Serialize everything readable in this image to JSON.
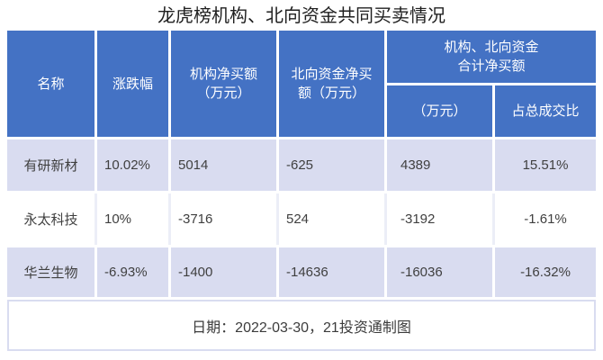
{
  "title": "龙虎榜机构、北向资金共同买卖情况",
  "colors": {
    "header_bg": "#4472C4",
    "header_text": "#FFFFFF",
    "banded_row_bg": "#D9DCF0",
    "plain_row_bg": "#FFFFFF",
    "body_text": "#404040",
    "footer_border": "#D9DCF0"
  },
  "chart_data": {
    "type": "table",
    "title": "龙虎榜机构、北向资金共同买卖情况",
    "headers": {
      "name": "名称",
      "change": "涨跌幅",
      "inst_net_buy": "机构净买额\n（万元）",
      "north_net_buy": "北向资金净买\n额（万元）",
      "combined": "机构、北向资金\n合计净买额",
      "combined_amount": "（万元）",
      "combined_ratio": "占总成交比"
    },
    "rows": [
      {
        "name": "有研新材",
        "change": "10.02%",
        "inst_net_buy": "5014",
        "north_net_buy": "-625",
        "combined_amount": "4389",
        "combined_ratio": "15.51%"
      },
      {
        "name": "永太科技",
        "change": "10%",
        "inst_net_buy": "-3716",
        "north_net_buy": "524",
        "combined_amount": "-3192",
        "combined_ratio": "-1.61%"
      },
      {
        "name": "华兰生物",
        "change": "-6.93%",
        "inst_net_buy": "-1400",
        "north_net_buy": "-14636",
        "combined_amount": "-16036",
        "combined_ratio": "-16.32%"
      }
    ],
    "footer_note": "日期：2022-03-30，21投资通制图"
  }
}
